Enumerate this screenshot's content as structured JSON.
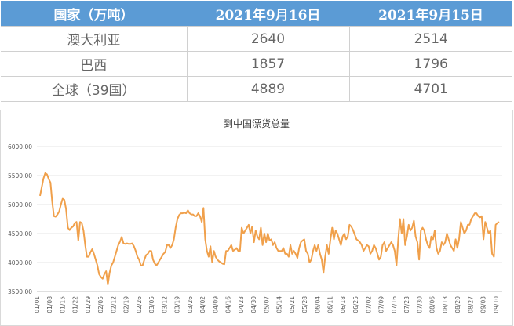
{
  "table": {
    "headers": [
      "国家（万吨）",
      "2021年9月16日",
      "2021年9月15日"
    ],
    "rows": [
      [
        "澳大利亚",
        "2640",
        "2514"
      ],
      [
        "巴西",
        "1857",
        "1796"
      ],
      [
        "全球（39国）",
        "4889",
        "4701"
      ]
    ]
  },
  "chart_data": {
    "type": "line",
    "title": "到中国漂货总量",
    "ylim": [
      3500,
      6000
    ],
    "ytick_labels": [
      "3500.00",
      "4000.00",
      "4500.00",
      "5000.00",
      "5500.00",
      "6000.00"
    ],
    "grid": true,
    "legend": "none",
    "xtick_labels": [
      "01/01",
      "01/08",
      "01/15",
      "01/22",
      "01/29",
      "02/05",
      "02/12",
      "02/19",
      "02/26",
      "03/05",
      "03/12",
      "03/19",
      "03/26",
      "04/02",
      "04/09",
      "04/16",
      "04/23",
      "04/30",
      "05/07",
      "05/14",
      "05/21",
      "05/28",
      "06/04",
      "06/11",
      "06/18",
      "06/25",
      "07/02",
      "07/09",
      "07/16",
      "07/23",
      "07/30",
      "08/06",
      "08/13",
      "08/20",
      "08/27",
      "09/03",
      "09/10"
    ],
    "series": [
      {
        "color": "#f0a04b",
        "values": [
          5150,
          5300,
          5450,
          5540,
          5520,
          5440,
          5380,
          5050,
          4800,
          4790,
          4830,
          4880,
          5000,
          5100,
          5080,
          4920,
          4600,
          4560,
          4600,
          4620,
          4680,
          4700,
          4380,
          4700,
          4680,
          4550,
          4300,
          4100,
          4100,
          4180,
          4230,
          4150,
          4050,
          3950,
          3800,
          3750,
          3720,
          3800,
          3850,
          3620,
          3820,
          3950,
          4000,
          4100,
          4200,
          4300,
          4360,
          4440,
          4330,
          4320,
          4330,
          4320,
          4320,
          4330,
          4280,
          4200,
          4100,
          4050,
          3950,
          3950,
          4050,
          4130,
          4150,
          4200,
          4200,
          4050,
          3980,
          3950,
          4000,
          4050,
          4100,
          4150,
          4180,
          4300,
          4300,
          4250,
          4300,
          4400,
          4600,
          4750,
          4820,
          4850,
          4850,
          4860,
          4850,
          4900,
          4850,
          4830,
          4830,
          4800,
          4800,
          4850,
          4800,
          4700,
          4940,
          4400,
          4200,
          4100,
          4280,
          4000,
          4200,
          4100,
          4050,
          4020,
          4000,
          3980,
          3970,
          4200,
          4200,
          4250,
          4300,
          4200,
          4220,
          4250,
          4200,
          4200,
          4600,
          4500,
          4550,
          4600,
          4650,
          4500,
          4620,
          4350,
          4550,
          4450,
          4400,
          4600,
          4300,
          4500,
          4350,
          4500,
          4380,
          4400,
          4300,
          4350,
          4250,
          4200,
          4200,
          4200,
          4250,
          4150,
          4150,
          4100,
          4300,
          4150,
          4200,
          4150,
          4080,
          4250,
          4350,
          4380,
          4400,
          4200,
          4150,
          4000,
          4050,
          4200,
          4300,
          4200,
          4300,
          4150,
          4050,
          3820,
          4100,
          4300,
          4150,
          4400,
          4600,
          4400,
          4550,
          4500,
          4400,
          4300,
          4450,
          4500,
          4400,
          4450,
          4650,
          4620,
          4560,
          4480,
          4400,
          4380,
          4350,
          4300,
          4200,
          4250,
          4300,
          4280,
          4150,
          4200,
          4300,
          4250,
          4150,
          4050,
          4100,
          4300,
          4350,
          4200,
          4250,
          4300,
          4350,
          4300,
          4200,
          3950,
          4400,
          4750,
          4500,
          4750,
          4300,
          4450,
          4650,
          4550,
          4600,
          4720,
          4450,
          4350,
          4050,
          4550,
          4600,
          4550,
          4400,
          4300,
          4250,
          4450,
          4400,
          4550,
          4250,
          4150,
          4200,
          4350,
          4300,
          4350,
          4500,
          4400,
          4300,
          4250,
          4200,
          4400,
          4250,
          4400,
          4700,
          4600,
          4500,
          4550,
          4650,
          4650,
          4750,
          4800,
          4850,
          4850,
          4800,
          4780,
          4800,
          4400,
          4700,
          4600,
          4500,
          4550,
          4150,
          4100,
          4650,
          4680,
          4700
        ]
      }
    ]
  }
}
